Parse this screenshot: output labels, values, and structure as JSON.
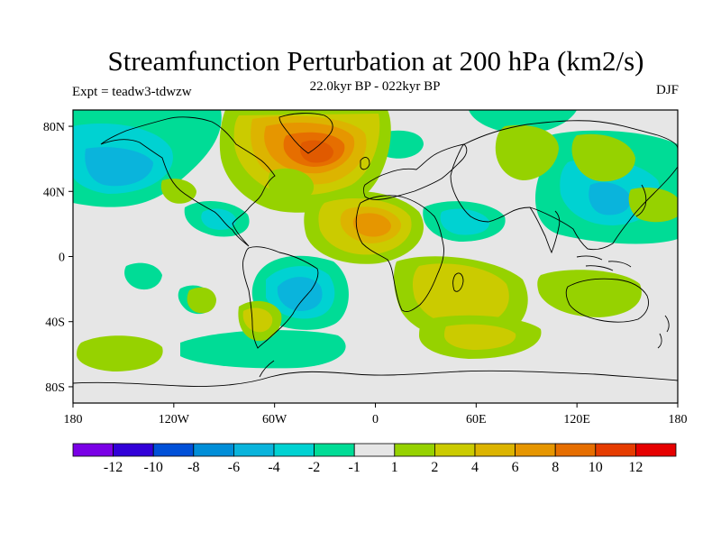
{
  "title": "Streamfunction Perturbation at 200 hPa (km2/s)",
  "subtitle": "22.0kyr BP - 022kyr BP",
  "left_label": "Expt = teadw3-tdwzw",
  "right_label": "DJF",
  "map": {
    "projection": "cylindrical-equidistant",
    "lon_range": [
      -180,
      180
    ],
    "lat_range": [
      -90,
      90
    ],
    "lat_ticks": [
      {
        "value": 80,
        "label": "80N"
      },
      {
        "value": 40,
        "label": "40N"
      },
      {
        "value": 0,
        "label": "0"
      },
      {
        "value": -40,
        "label": "40S"
      },
      {
        "value": -80,
        "label": "80S"
      }
    ],
    "lon_ticks": [
      {
        "value": -180,
        "label": "180"
      },
      {
        "value": -120,
        "label": "120W"
      },
      {
        "value": -60,
        "label": "60W"
      },
      {
        "value": 0,
        "label": "0"
      },
      {
        "value": 60,
        "label": "60E"
      },
      {
        "value": 120,
        "label": "120E"
      },
      {
        "value": 180,
        "label": "180"
      }
    ],
    "background_color": "#e6e6e6",
    "contour_fields": [
      {
        "lon": -45,
        "lat": 60,
        "value": 9,
        "color": "#e05a00"
      },
      {
        "lon": -50,
        "lat": 62,
        "value": 6,
        "color": "#e88a00"
      },
      {
        "lon": -5,
        "lat": 20,
        "value": 7,
        "color": "#e88a00"
      },
      {
        "lon": -35,
        "lat": -20,
        "value": -6,
        "color": "#0ab4dc"
      },
      {
        "lon": -160,
        "lat": 50,
        "value": -5,
        "color": "#0ab4dc"
      },
      {
        "lon": 120,
        "lat": 30,
        "value": -3,
        "color": "#00d2d2"
      },
      {
        "lon": 50,
        "lat": -25,
        "value": 3,
        "color": "#cbcb00"
      },
      {
        "lon": 55,
        "lat": -50,
        "value": 3,
        "color": "#cbcb00"
      }
    ]
  },
  "colorbar": {
    "colors": [
      "#7a00e6",
      "#3200d8",
      "#0050d8",
      "#008ed8",
      "#0ab4dc",
      "#00d2d2",
      "#00dc96",
      "#e6e6e6",
      "#96d200",
      "#cbcb00",
      "#dcb400",
      "#e69600",
      "#e66e00",
      "#e63c00",
      "#e60000"
    ],
    "labels": [
      "-12",
      "-10",
      "-8",
      "-6",
      "-4",
      "-2",
      "-1",
      "1",
      "2",
      "4",
      "6",
      "8",
      "10",
      "12"
    ]
  }
}
